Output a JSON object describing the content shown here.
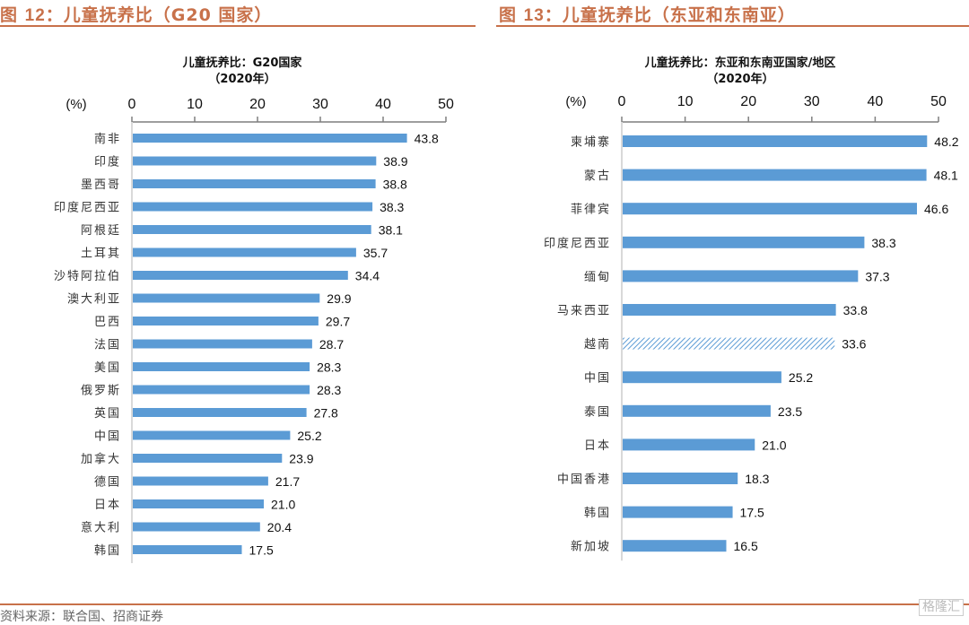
{
  "figures": [
    {
      "header": {
        "prefix": "图 ",
        "number": "12",
        "suffix": "：儿童抚养比（G20 国家）"
      },
      "chart_title_line1": "儿童抚养比：G20国家",
      "chart_title_line2": "（2020年）"
    },
    {
      "header": {
        "prefix": "图 ",
        "number": "13",
        "suffix": "：儿童抚养比（东亚和东南亚）"
      },
      "chart_title_line1": "儿童抚养比：东亚和东南亚国家/地区",
      "chart_title_line2": "（2020年）"
    }
  ],
  "colors": {
    "bar": "#5b9bd5",
    "accent": "#c8714a",
    "axis": "#7f7f7f"
  },
  "footer": {
    "source": "资料来源：联合国、招商证券",
    "watermark": "格隆汇"
  },
  "chart_data": [
    {
      "type": "bar",
      "orientation": "horizontal",
      "title": "儿童抚养比：G20国家（2020年）",
      "unit_label": "(%)",
      "xlim": [
        0,
        50
      ],
      "ticks": [
        0,
        10,
        20,
        30,
        40,
        50
      ],
      "grid": false,
      "categories": [
        "南非",
        "印度",
        "墨西哥",
        "印度尼西亚",
        "阿根廷",
        "土耳其",
        "沙特阿拉伯",
        "澳大利亚",
        "巴西",
        "法国",
        "美国",
        "俄罗斯",
        "英国",
        "中国",
        "加拿大",
        "德国",
        "日本",
        "意大利",
        "韩国"
      ],
      "values": [
        43.8,
        38.9,
        38.8,
        38.3,
        38.1,
        35.7,
        34.4,
        29.9,
        29.7,
        28.7,
        28.3,
        28.3,
        27.8,
        25.2,
        23.9,
        21.7,
        21.0,
        20.4,
        17.5
      ],
      "labels": [
        "43.8",
        "38.9",
        "38.8",
        "38.3",
        "38.1",
        "35.7",
        "34.4",
        "29.9",
        "29.7",
        "28.7",
        "28.3",
        "28.3",
        "27.8",
        "25.2",
        "23.9",
        "21.7",
        "21.0",
        "20.4",
        "17.5"
      ],
      "hatched": []
    },
    {
      "type": "bar",
      "orientation": "horizontal",
      "title": "儿童抚养比：东亚和东南亚国家/地区（2020年）",
      "unit_label": "(%)",
      "xlim": [
        0,
        50
      ],
      "ticks": [
        0,
        10,
        20,
        30,
        40,
        50
      ],
      "grid": false,
      "categories": [
        "柬埔寨",
        "蒙古",
        "菲律宾",
        "印度尼西亚",
        "缅甸",
        "马来西亚",
        "越南",
        "中国",
        "泰国",
        "日本",
        "中国香港",
        "韩国",
        "新加坡"
      ],
      "values": [
        48.2,
        48.1,
        46.6,
        38.3,
        37.3,
        33.8,
        33.6,
        25.2,
        23.5,
        21.0,
        18.3,
        17.5,
        16.5
      ],
      "labels": [
        "48.2",
        "48.1",
        "46.6",
        "38.3",
        "37.3",
        "33.8",
        "33.6",
        "25.2",
        "23.5",
        "21.0",
        "18.3",
        "17.5",
        "16.5"
      ],
      "hatched": [
        "越南"
      ]
    }
  ]
}
